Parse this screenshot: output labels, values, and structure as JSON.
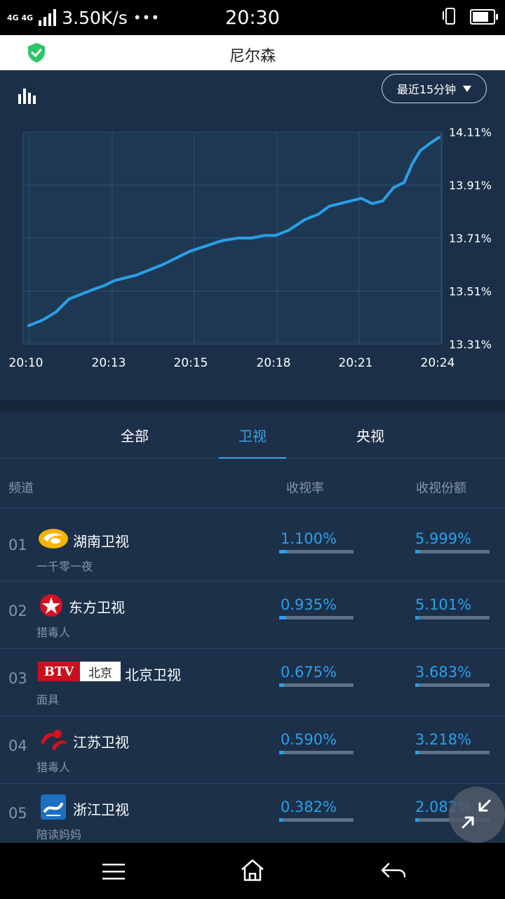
{
  "status_bar": {
    "network_1": "4G",
    "network_2": "4G",
    "speed": "3.50K/s",
    "dots": "•••",
    "time": "20:30"
  },
  "header": {
    "title": "尼尔森"
  },
  "chart_controls": {
    "range_label": "最近15分钟"
  },
  "chart_data": {
    "type": "line",
    "title": "",
    "x_ticks": [
      "20:10",
      "20:13",
      "20:15",
      "20:18",
      "20:21",
      "20:24"
    ],
    "y_ticks": [
      "14.11%",
      "13.91%",
      "13.71%",
      "13.51%",
      "13.31%"
    ],
    "ylim": [
      13.31,
      14.11
    ],
    "grid": true,
    "line_color": "#2a9fe6",
    "series": [
      {
        "values": [
          [
            0.0,
            13.38
          ],
          [
            0.5,
            13.4
          ],
          [
            1.0,
            13.43
          ],
          [
            1.5,
            13.48
          ],
          [
            2.0,
            13.5
          ],
          [
            2.5,
            13.52
          ],
          [
            2.8,
            13.53
          ],
          [
            3.2,
            13.55
          ],
          [
            3.6,
            13.56
          ],
          [
            4.0,
            13.57
          ],
          [
            4.5,
            13.59
          ],
          [
            5.0,
            13.61
          ],
          [
            5.6,
            13.64
          ],
          [
            6.0,
            13.66
          ],
          [
            6.6,
            13.68
          ],
          [
            7.2,
            13.7
          ],
          [
            7.8,
            13.71
          ],
          [
            8.3,
            13.71
          ],
          [
            8.8,
            13.72
          ],
          [
            9.2,
            13.72
          ],
          [
            9.7,
            13.74
          ],
          [
            10.3,
            13.78
          ],
          [
            10.8,
            13.8
          ],
          [
            11.2,
            13.83
          ],
          [
            11.6,
            13.84
          ],
          [
            12.0,
            13.85
          ],
          [
            12.4,
            13.86
          ],
          [
            12.8,
            13.84
          ],
          [
            13.2,
            13.85
          ],
          [
            13.6,
            13.9
          ],
          [
            14.0,
            13.92
          ],
          [
            14.3,
            13.99
          ],
          [
            14.6,
            14.04
          ],
          [
            15.0,
            14.07
          ],
          [
            15.3,
            14.09
          ]
        ]
      }
    ]
  },
  "tabs": [
    {
      "label": "全部",
      "active": false
    },
    {
      "label": "卫视",
      "active": true
    },
    {
      "label": "央视",
      "active": false
    }
  ],
  "table": {
    "headers": {
      "channel": "频道",
      "rating": "收视率",
      "share": "收视份额"
    },
    "rows": [
      {
        "rank": "01",
        "channel": "湖南卫视",
        "program": "一千零一夜",
        "rating": "1.100%",
        "share": "5.999%",
        "rating_fill": 0.1,
        "share_fill": 0.06,
        "logo": "hunan-tv-logo"
      },
      {
        "rank": "02",
        "channel": "东方卫视",
        "program": "猎毒人",
        "rating": "0.935%",
        "share": "5.101%",
        "rating_fill": 0.09,
        "share_fill": 0.05,
        "logo": "dragon-tv-logo"
      },
      {
        "rank": "03",
        "channel": "北京卫视",
        "program": "面具",
        "rating": "0.675%",
        "share": "3.683%",
        "rating_fill": 0.07,
        "share_fill": 0.04,
        "logo": "btv-logo",
        "logo_text_1": "BTV",
        "logo_text_2": "北京"
      },
      {
        "rank": "04",
        "channel": "江苏卫视",
        "program": "猎毒人",
        "rating": "0.590%",
        "share": "3.218%",
        "rating_fill": 0.06,
        "share_fill": 0.03,
        "logo": "jiangsu-tv-logo"
      },
      {
        "rank": "05",
        "channel": "浙江卫视",
        "program": "陪读妈妈",
        "rating": "0.382%",
        "share": "2.082%",
        "rating_fill": 0.04,
        "share_fill": 0.02,
        "logo": "zhejiang-tv-logo"
      }
    ]
  }
}
